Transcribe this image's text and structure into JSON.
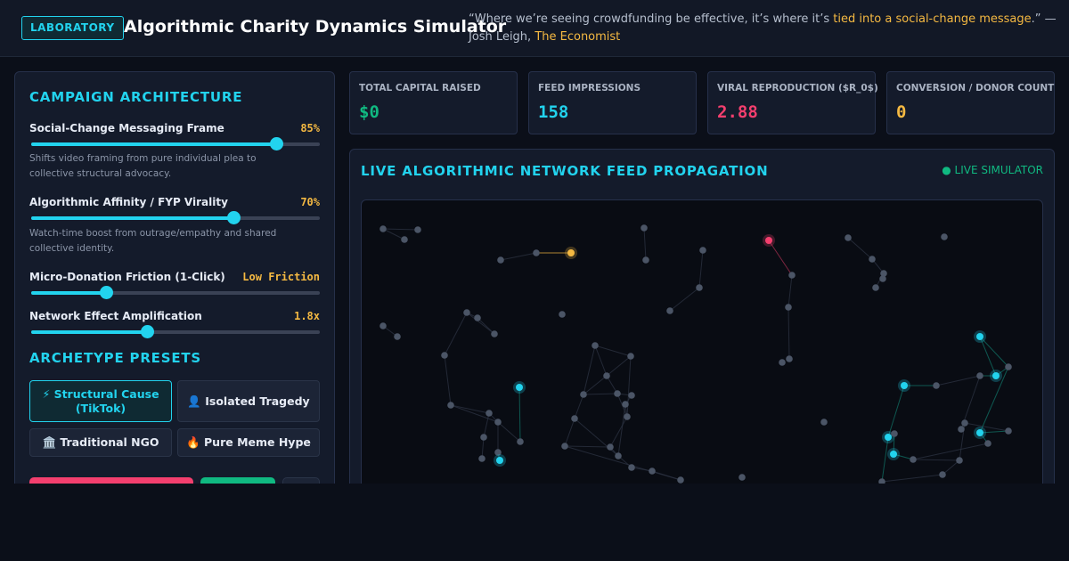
{
  "header": {
    "badge": "LABORATORY",
    "title": "Algorithmic Charity Dynamics Simulator",
    "quote_before": "“Where we’re seeing crowdfunding be effective, it’s where it’s ",
    "quote_highlight": "tied into a social-change message",
    "quote_after": ".” — Josh Leigh, ",
    "quote_source": "The Economist"
  },
  "controls": {
    "title": "CAMPAIGN ARCHITECTURE",
    "sliders": [
      {
        "label": "Social-Change Messaging Frame",
        "value_text": "85%",
        "level": 0.85,
        "description": "Shifts video framing from pure individual plea to collective structural advocacy."
      },
      {
        "label": "Algorithmic Affinity / FYP Virality",
        "value_text": "70%",
        "level": 0.7,
        "description": "Watch-time boost from outrage/empathy and shared collective identity."
      },
      {
        "label": "Micro-Donation Friction (1-Click)",
        "value_text": "Low Friction",
        "level": 0.26
      },
      {
        "label": "Network Effect Amplification",
        "value_text": "1.8x",
        "level": 0.4
      }
    ]
  },
  "presets": {
    "title": "ARCHETYPE PRESETS",
    "items": [
      {
        "label": "⚡ Structural Cause (TikTok)",
        "active": true
      },
      {
        "label": "👤 Isolated Tragedy",
        "active": false
      },
      {
        "label": "🏛️ Traditional NGO",
        "active": false
      },
      {
        "label": "🔥 Pure Meme Hype",
        "active": false
      }
    ]
  },
  "stats": [
    {
      "label": "TOTAL CAPITAL RAISED",
      "value": "$0",
      "color": "#10b981"
    },
    {
      "label": "FEED IMPRESSIONS",
      "value": "158",
      "color": "#22d3ee"
    },
    {
      "label": "VIRAL REPRODUCTION ($R_0$)",
      "value": "2.88",
      "color": "#f43f6e"
    },
    {
      "label": "CONVERSION / DONOR COUNT",
      "value": "0",
      "color": "#f5b942"
    }
  ],
  "feed": {
    "title": "LIVE ALGORITHMIC NETWORK FEED PROPAGATION",
    "live_label": "● LIVE SIMULATOR"
  },
  "colors": {
    "accent": "#22d3ee",
    "node_idle": "#4b5566",
    "node_reached": "#22d3ee",
    "node_donor": "#f5b942",
    "node_sharer": "#f43f6e",
    "success": "#10b981"
  }
}
